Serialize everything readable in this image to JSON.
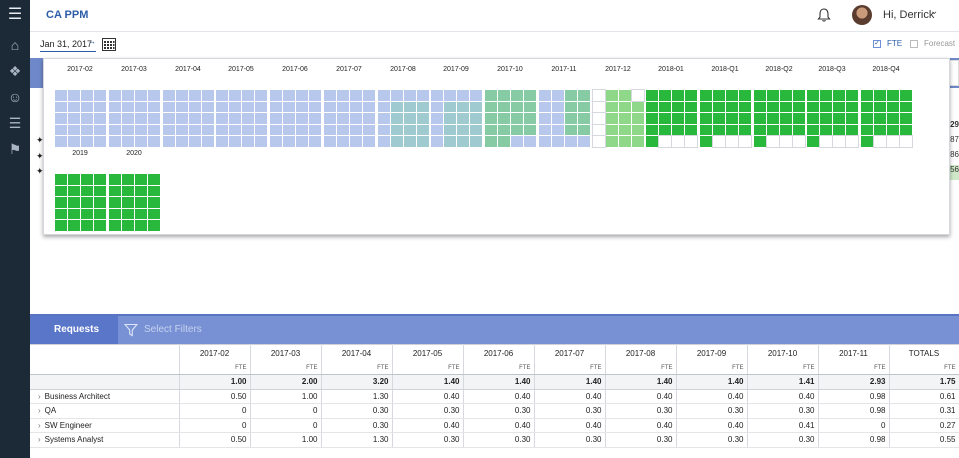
{
  "app": {
    "title": "CA PPM",
    "greeting": "Hi, Derrick"
  },
  "datebar": {
    "date_value": "Jan 31, 2017",
    "fte_label": "FTE",
    "forecast_label": "Forecast"
  },
  "colors": {
    "blue_light": "#b7c8ec",
    "blue_teal": "#9fcad0",
    "teal_green": "#86cba3",
    "green_light": "#8fd88a",
    "green": "#27b83c",
    "empty": "#ffffff"
  },
  "heatmap": {
    "periods": [
      {
        "label": "2017-02",
        "level": "blue"
      },
      {
        "label": "2017-03",
        "level": "blue"
      },
      {
        "label": "2017-04",
        "level": "blue"
      },
      {
        "label": "2017-05",
        "level": "blue"
      },
      {
        "label": "2017-06",
        "level": "blue"
      },
      {
        "label": "2017-07",
        "level": "blue"
      },
      {
        "label": "2017-08",
        "level": "blueteal"
      },
      {
        "label": "2017-09",
        "level": "blueteal"
      },
      {
        "label": "2017-10",
        "level": "teal"
      },
      {
        "label": "2017-11",
        "level": "tealmix"
      },
      {
        "label": "2017-12",
        "level": "lightgreen"
      },
      {
        "label": "2018-01",
        "level": "green"
      },
      {
        "label": "2018-Q1",
        "level": "greenpartial"
      },
      {
        "label": "2018-Q2",
        "level": "greenpartial"
      },
      {
        "label": "2018-Q3",
        "level": "greenpartial"
      },
      {
        "label": "2018-Q4",
        "level": "greenpartial"
      },
      {
        "label": "2019",
        "level": "green"
      },
      {
        "label": "2020",
        "level": "green"
      }
    ]
  },
  "behind": {
    "values": [
      "29",
      "87",
      "86",
      "56"
    ]
  },
  "requests": {
    "tab_label": "Requests",
    "filter_placeholder": "Select Filters"
  },
  "table": {
    "columns": [
      "2017-02",
      "2017-03",
      "2017-04",
      "2017-05",
      "2017-06",
      "2017-07",
      "2017-08",
      "2017-09",
      "2017-10",
      "2017-11",
      "TOTALS"
    ],
    "unit": "FTE",
    "totals": [
      "1.00",
      "2.00",
      "3.20",
      "1.40",
      "1.40",
      "1.40",
      "1.40",
      "1.40",
      "1.41",
      "2.93",
      "1.75"
    ],
    "rows": [
      {
        "name": "Business Architect",
        "values": [
          "0.50",
          "1.00",
          "1.30",
          "0.40",
          "0.40",
          "0.40",
          "0.40",
          "0.40",
          "0.40",
          "0.98",
          "0.61"
        ]
      },
      {
        "name": "QA",
        "values": [
          "0",
          "0",
          "0.30",
          "0.30",
          "0.30",
          "0.30",
          "0.30",
          "0.30",
          "0.30",
          "0.98",
          "0.31"
        ]
      },
      {
        "name": "SW Engineer",
        "values": [
          "0",
          "0",
          "0.30",
          "0.40",
          "0.40",
          "0.40",
          "0.40",
          "0.40",
          "0.41",
          "0",
          "0.27"
        ]
      },
      {
        "name": "Systems Analyst",
        "values": [
          "0.50",
          "1.00",
          "1.30",
          "0.30",
          "0.30",
          "0.30",
          "0.30",
          "0.30",
          "0.30",
          "0.98",
          "0.55"
        ]
      }
    ]
  }
}
